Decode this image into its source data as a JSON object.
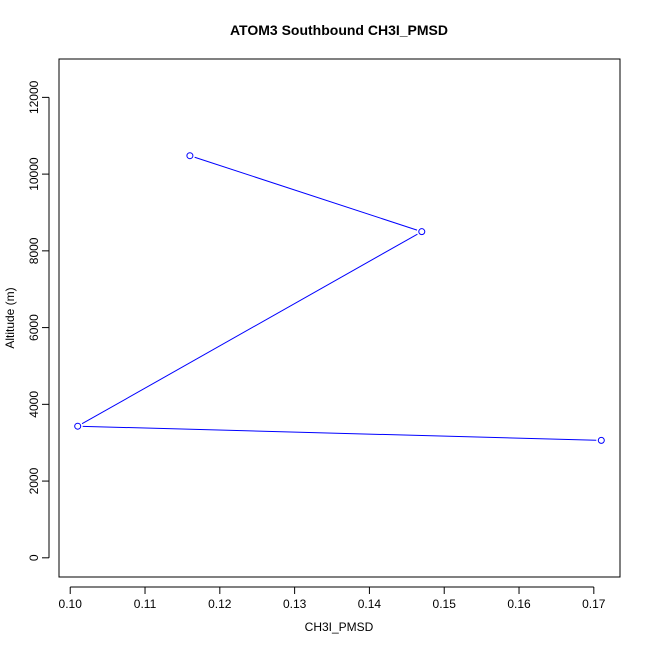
{
  "chart_data": {
    "type": "line",
    "title": "ATOM3 Southbound CH3I_PMSD",
    "xlabel": "CH3I_PMSD",
    "ylabel": "Altitude (m)",
    "xlim": [
      0.0985,
      0.1735
    ],
    "ylim": [
      -500,
      13000
    ],
    "xticks": [
      0.1,
      0.11,
      0.12,
      0.13,
      0.14,
      0.15,
      0.16,
      0.17
    ],
    "xtick_labels": [
      "0.10",
      "0.11",
      "0.12",
      "0.13",
      "0.14",
      "0.15",
      "0.16",
      "0.17"
    ],
    "yticks": [
      0,
      2000,
      4000,
      6000,
      8000,
      10000,
      12000
    ],
    "ytick_labels": [
      "0",
      "2000",
      "4000",
      "6000",
      "8000",
      "10000",
      "12000"
    ],
    "grid": false,
    "series": [
      {
        "color": "#0000ff",
        "marker": "open-circle",
        "points": [
          {
            "x": 0.116,
            "y": 10480
          },
          {
            "x": 0.147,
            "y": 8500
          },
          {
            "x": 0.101,
            "y": 3430
          },
          {
            "x": 0.171,
            "y": 3060
          }
        ]
      }
    ]
  }
}
